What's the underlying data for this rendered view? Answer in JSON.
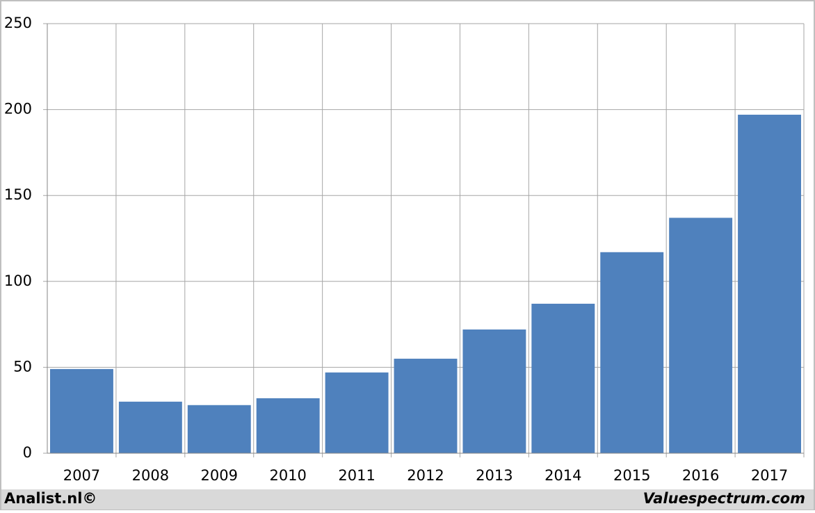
{
  "chart_data": {
    "type": "bar",
    "categories": [
      "2007",
      "2008",
      "2009",
      "2010",
      "2011",
      "2012",
      "2013",
      "2014",
      "2015",
      "2016",
      "2017"
    ],
    "values": [
      49,
      30,
      28,
      32,
      47,
      55,
      72,
      87,
      117,
      137,
      197
    ],
    "color": "#4f81bd",
    "ylim": [
      0,
      250
    ],
    "yticks": [
      0,
      50,
      100,
      150,
      200,
      250
    ],
    "grid": true
  },
  "footer": {
    "left": "Analist.nl©",
    "right": "Valuespectrum.com"
  }
}
